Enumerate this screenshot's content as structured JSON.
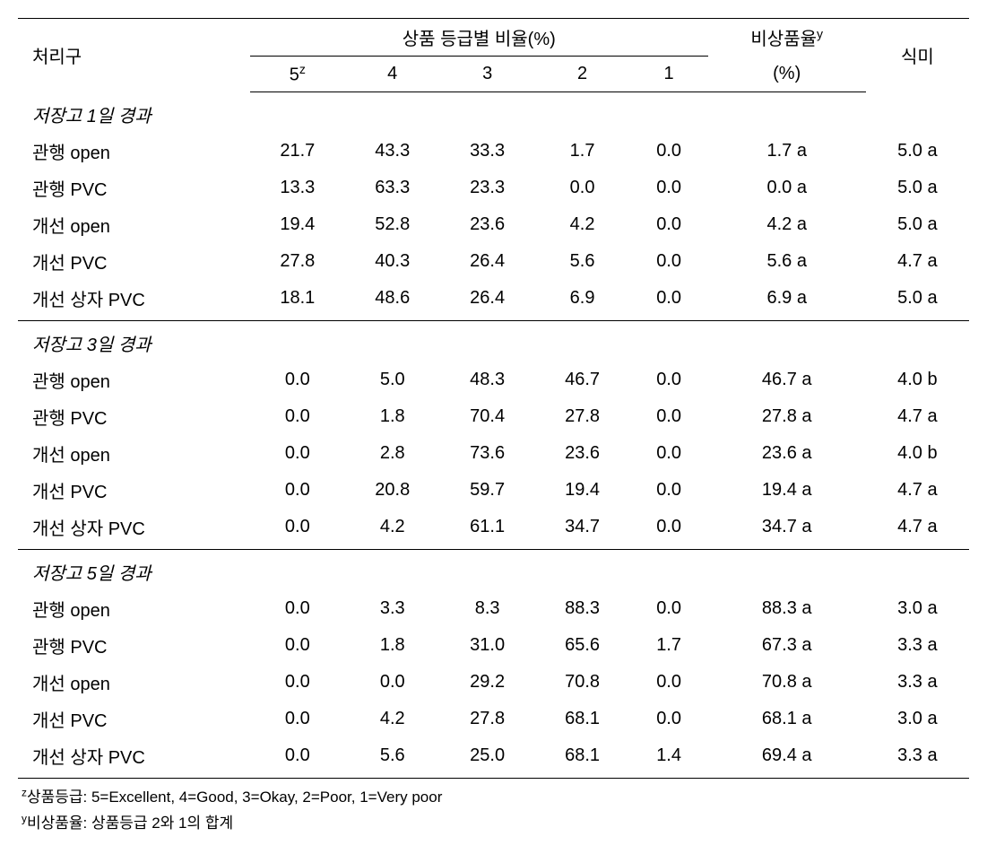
{
  "headers": {
    "treatment": "처리구",
    "grade_group": "상품 등급별 비율(%)",
    "col5": "5",
    "col5_sup": "z",
    "col4": "4",
    "col3": "3",
    "col2": "2",
    "col1": "1",
    "nonproduct": "비상품율",
    "nonproduct_sup": "y",
    "nonproduct_unit": "(%)",
    "taste": "식미"
  },
  "sections": [
    {
      "title": "저장고 1일 경과",
      "rows": [
        {
          "treatment": "관행 open",
          "g5": "21.7",
          "g4": "43.3",
          "g3": "33.3",
          "g2": "1.7",
          "g1": "0.0",
          "nonproduct": "1.7 a",
          "taste": "5.0 a"
        },
        {
          "treatment": "관행 PVC",
          "g5": "13.3",
          "g4": "63.3",
          "g3": "23.3",
          "g2": "0.0",
          "g1": "0.0",
          "nonproduct": "0.0 a",
          "taste": "5.0 a"
        },
        {
          "treatment": "개선 open",
          "g5": "19.4",
          "g4": "52.8",
          "g3": "23.6",
          "g2": "4.2",
          "g1": "0.0",
          "nonproduct": "4.2 a",
          "taste": "5.0 a"
        },
        {
          "treatment": "개선 PVC",
          "g5": "27.8",
          "g4": "40.3",
          "g3": "26.4",
          "g2": "5.6",
          "g1": "0.0",
          "nonproduct": "5.6 a",
          "taste": "4.7 a"
        },
        {
          "treatment": "개선 상자 PVC",
          "g5": "18.1",
          "g4": "48.6",
          "g3": "26.4",
          "g2": "6.9",
          "g1": "0.0",
          "nonproduct": "6.9 a",
          "taste": "5.0 a"
        }
      ]
    },
    {
      "title": "저장고 3일 경과",
      "rows": [
        {
          "treatment": "관행 open",
          "g5": "0.0",
          "g4": "5.0",
          "g3": "48.3",
          "g2": "46.7",
          "g1": "0.0",
          "nonproduct": "46.7 a",
          "taste": "4.0 b"
        },
        {
          "treatment": "관행 PVC",
          "g5": "0.0",
          "g4": "1.8",
          "g3": "70.4",
          "g2": "27.8",
          "g1": "0.0",
          "nonproduct": "27.8 a",
          "taste": "4.7 a"
        },
        {
          "treatment": "개선 open",
          "g5": "0.0",
          "g4": "2.8",
          "g3": "73.6",
          "g2": "23.6",
          "g1": "0.0",
          "nonproduct": "23.6 a",
          "taste": "4.0 b"
        },
        {
          "treatment": "개선 PVC",
          "g5": "0.0",
          "g4": "20.8",
          "g3": "59.7",
          "g2": "19.4",
          "g1": "0.0",
          "nonproduct": "19.4 a",
          "taste": "4.7 a"
        },
        {
          "treatment": "개선 상자 PVC",
          "g5": "0.0",
          "g4": "4.2",
          "g3": "61.1",
          "g2": "34.7",
          "g1": "0.0",
          "nonproduct": "34.7 a",
          "taste": "4.7 a"
        }
      ]
    },
    {
      "title": "저장고 5일 경과",
      "rows": [
        {
          "treatment": "관행 open",
          "g5": "0.0",
          "g4": "3.3",
          "g3": "8.3",
          "g2": "88.3",
          "g1": "0.0",
          "nonproduct": "88.3 a",
          "taste": "3.0 a"
        },
        {
          "treatment": "관행 PVC",
          "g5": "0.0",
          "g4": "1.8",
          "g3": "31.0",
          "g2": "65.6",
          "g1": "1.7",
          "nonproduct": "67.3 a",
          "taste": "3.3 a"
        },
        {
          "treatment": "개선 open",
          "g5": "0.0",
          "g4": "0.0",
          "g3": "29.2",
          "g2": "70.8",
          "g1": "0.0",
          "nonproduct": "70.8 a",
          "taste": "3.3 a"
        },
        {
          "treatment": "개선 PVC",
          "g5": "0.0",
          "g4": "4.2",
          "g3": "27.8",
          "g2": "68.1",
          "g1": "0.0",
          "nonproduct": "68.1 a",
          "taste": "3.0 a"
        },
        {
          "treatment": "개선 상자 PVC",
          "g5": "0.0",
          "g4": "5.6",
          "g3": "25.0",
          "g2": "68.1",
          "g1": "1.4",
          "nonproduct": "69.4 a",
          "taste": "3.3 a"
        }
      ]
    }
  ],
  "footnotes": {
    "z_sup": "z",
    "z_text": "상품등급: 5=Excellent, 4=Good, 3=Okay, 2=Poor, 1=Very poor",
    "y_sup": "y",
    "y_text": "비상품율: 상품등급 2와 1의 합계"
  }
}
